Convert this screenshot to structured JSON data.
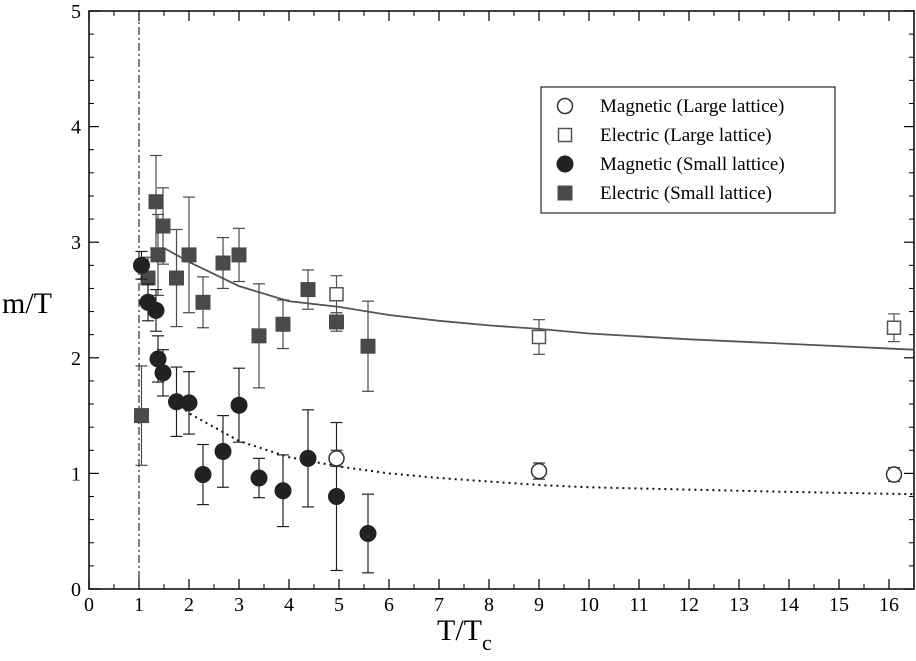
{
  "chart_data": {
    "type": "scatter",
    "xlabel": "T/T",
    "xlabel_sub": "c",
    "ylabel": "m/T",
    "xlim": [
      0,
      16.5
    ],
    "ylim": [
      0,
      5
    ],
    "x_ticks": [
      0,
      1,
      2,
      3,
      4,
      5,
      6,
      7,
      8,
      9,
      10,
      11,
      12,
      13,
      14,
      15,
      16
    ],
    "x_tick_labels": [
      "0",
      "1",
      "2",
      "3",
      "4",
      "5",
      "6",
      "7",
      "8",
      "9",
      "10",
      "11",
      "12",
      "13",
      "14",
      "15",
      "16"
    ],
    "y_ticks": [
      0,
      1,
      2,
      3,
      4,
      5
    ],
    "y_tick_labels": [
      "0",
      "1",
      "2",
      "3",
      "4",
      "5"
    ],
    "vline_x": 1,
    "legend_position": "top-right",
    "series": [
      {
        "name": "Magnetic (Large lattice)",
        "marker": "circle-open",
        "color": "#333333",
        "points": [
          {
            "x": 4.95,
            "y": 1.13,
            "err": 0.07
          },
          {
            "x": 9.0,
            "y": 1.02,
            "err": 0.07
          },
          {
            "x": 16.1,
            "y": 0.99,
            "err": 0.06
          }
        ]
      },
      {
        "name": "Electric (Large lattice)",
        "marker": "square-open",
        "color": "#555555",
        "points": [
          {
            "x": 4.95,
            "y": 2.55,
            "err": 0.16
          },
          {
            "x": 9.0,
            "y": 2.18,
            "err": 0.15
          },
          {
            "x": 16.1,
            "y": 2.26,
            "err": 0.12
          }
        ]
      },
      {
        "name": "Magnetic (Small lattice)",
        "marker": "circle-filled",
        "color": "#222222",
        "points": [
          {
            "x": 1.05,
            "y": 2.8,
            "err": 0.12
          },
          {
            "x": 1.18,
            "y": 2.48,
            "err": 0.16
          },
          {
            "x": 1.34,
            "y": 2.41,
            "err": 0.18
          },
          {
            "x": 1.38,
            "y": 1.99,
            "err": 0.2
          },
          {
            "x": 1.48,
            "y": 1.87,
            "err": 0.2
          },
          {
            "x": 1.75,
            "y": 1.62,
            "err": 0.3
          },
          {
            "x": 2.0,
            "y": 1.61,
            "err": 0.27
          },
          {
            "x": 2.28,
            "y": 0.99,
            "err": 0.26
          },
          {
            "x": 2.68,
            "y": 1.19,
            "err": 0.31
          },
          {
            "x": 3.0,
            "y": 1.59,
            "err": 0.32
          },
          {
            "x": 3.4,
            "y": 0.96,
            "err": 0.17
          },
          {
            "x": 3.88,
            "y": 0.85,
            "err": 0.31
          },
          {
            "x": 4.38,
            "y": 1.13,
            "err": 0.42
          },
          {
            "x": 4.95,
            "y": 0.8,
            "err": 0.64
          },
          {
            "x": 5.58,
            "y": 0.48,
            "err": 0.34
          }
        ]
      },
      {
        "name": "Electric (Small lattice)",
        "marker": "square-filled",
        "color": "#4a4a4a",
        "points": [
          {
            "x": 1.05,
            "y": 1.5,
            "err": 0.43
          },
          {
            "x": 1.18,
            "y": 2.69,
            "err": 0.18
          },
          {
            "x": 1.34,
            "y": 3.35,
            "err": 0.4
          },
          {
            "x": 1.38,
            "y": 2.89,
            "err": 0.35
          },
          {
            "x": 1.48,
            "y": 3.14,
            "err": 0.33
          },
          {
            "x": 1.75,
            "y": 2.69,
            "err": 0.42
          },
          {
            "x": 2.0,
            "y": 2.89,
            "err": 0.5
          },
          {
            "x": 2.28,
            "y": 2.48,
            "err": 0.22
          },
          {
            "x": 2.68,
            "y": 2.82,
            "err": 0.22
          },
          {
            "x": 3.0,
            "y": 2.89,
            "err": 0.23
          },
          {
            "x": 3.4,
            "y": 2.19,
            "err": 0.45
          },
          {
            "x": 3.88,
            "y": 2.29,
            "err": 0.21
          },
          {
            "x": 4.38,
            "y": 2.59,
            "err": 0.17
          },
          {
            "x": 4.95,
            "y": 2.31,
            "err": 0.08
          },
          {
            "x": 5.58,
            "y": 2.1,
            "err": 0.39
          }
        ]
      }
    ],
    "fits": [
      {
        "name": "electric-fit",
        "style": "solid",
        "color": "#555555",
        "x_start": 1.5,
        "x_end": 16.5,
        "points": [
          [
            1.5,
            2.95
          ],
          [
            2,
            2.83
          ],
          [
            3,
            2.62
          ],
          [
            4,
            2.49
          ],
          [
            5,
            2.44
          ],
          [
            6,
            2.37
          ],
          [
            7,
            2.32
          ],
          [
            8,
            2.28
          ],
          [
            9,
            2.25
          ],
          [
            10,
            2.21
          ],
          [
            12,
            2.16
          ],
          [
            14,
            2.12
          ],
          [
            16.5,
            2.07
          ]
        ]
      },
      {
        "name": "magnetic-fit",
        "style": "dotted",
        "color": "#111111",
        "x_start": 1.75,
        "x_end": 16.5,
        "points": [
          [
            1.75,
            1.62
          ],
          [
            2,
            1.52
          ],
          [
            3,
            1.28
          ],
          [
            4,
            1.14
          ],
          [
            5,
            1.06
          ],
          [
            6,
            1.0
          ],
          [
            7,
            0.96
          ],
          [
            8,
            0.93
          ],
          [
            9,
            0.9
          ],
          [
            10,
            0.88
          ],
          [
            12,
            0.86
          ],
          [
            14,
            0.84
          ],
          [
            16.5,
            0.82
          ]
        ]
      }
    ]
  }
}
